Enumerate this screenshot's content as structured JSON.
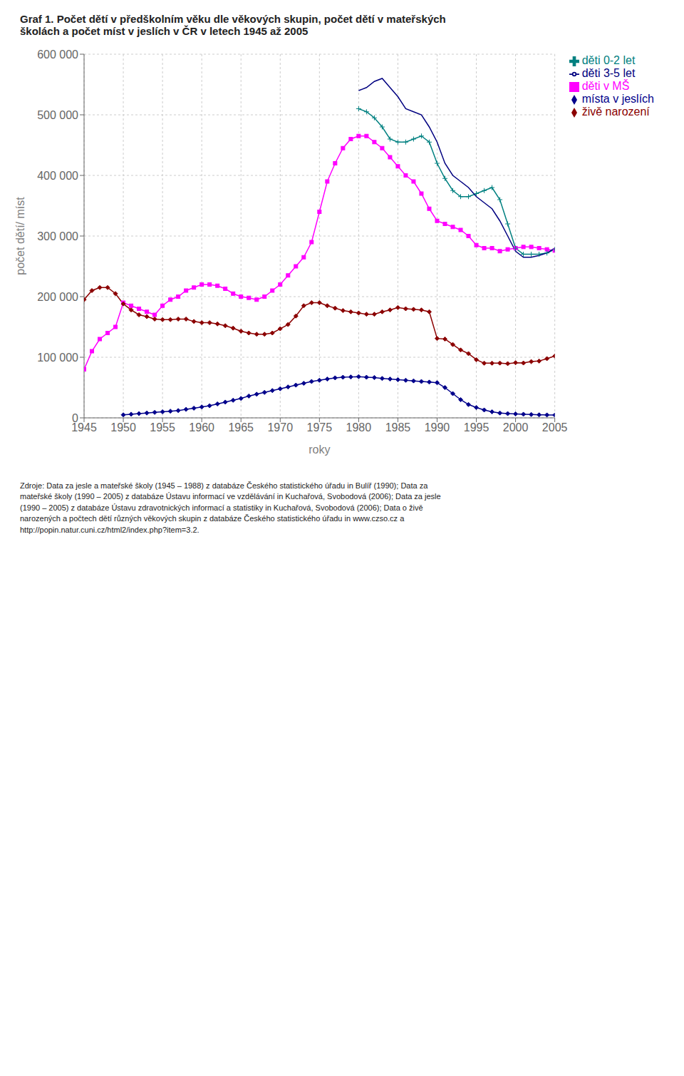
{
  "chart_data": {
    "type": "line",
    "title": "Graf 1. Počet dětí v předškolním věku dle věkových skupin, počet dětí v mateřských\nškolách a počet míst v jeslích v ČR v letech 1945 až 2005",
    "xlabel": "roky",
    "ylabel": "počet dětí/ míst",
    "annotations": [
      "Zdroje:  Data za jesle a mateřské školy (1945 – 1988) z databáze Českého statistického úřadu in Bulíř (1990); Data za\nmateřské školy (1990 – 2005) z databáze Ústavu informací ve vzdělávání in Kuchařová, Svobodová (2006); Data za jesle\n(1990 – 2005) z databáze Ústavu zdravotnických informací a statistiky in Kuchařová, Svobodová (2006); Data o živě\nnarozených a počtech dětí různých věkových skupin z databáze Českého statistického úřadu in www.czso.cz a\nhttp://popin.natur.cuni.cz/html2/index.php?item=3.2."
    ],
    "x": [
      1945,
      1946,
      1947,
      1948,
      1949,
      1950,
      1951,
      1952,
      1953,
      1954,
      1955,
      1956,
      1957,
      1958,
      1959,
      1960,
      1961,
      1962,
      1963,
      1964,
      1965,
      1966,
      1967,
      1968,
      1969,
      1970,
      1971,
      1972,
      1973,
      1974,
      1975,
      1976,
      1977,
      1978,
      1979,
      1980,
      1981,
      1982,
      1983,
      1984,
      1985,
      1986,
      1987,
      1988,
      1989,
      1990,
      1991,
      1992,
      1993,
      1994,
      1995,
      1996,
      1997,
      1998,
      1999,
      2000,
      2001,
      2002,
      2003,
      2004,
      2005
    ],
    "series": [
      {
        "name": "místa v jeslích",
        "color": "#00008B",
        "marker": "diamond",
        "values": [
          null,
          null,
          null,
          null,
          null,
          5000,
          6000,
          7000,
          8000,
          9000,
          10000,
          11000,
          12000,
          14000,
          16000,
          18000,
          20000,
          23000,
          26000,
          29000,
          32000,
          36000,
          39000,
          42000,
          45000,
          48000,
          51000,
          54000,
          57000,
          60000,
          62000,
          64000,
          66000,
          67000,
          67500,
          68000,
          67000,
          66500,
          65000,
          64000,
          63000,
          62000,
          61000,
          60000,
          59000,
          58000,
          50000,
          40000,
          30000,
          22000,
          17000,
          13000,
          10000,
          8000,
          7000,
          6500,
          6000,
          5500,
          5000,
          4800,
          4600
        ]
      },
      {
        "name": "děti v MŠ",
        "color": "#FF00FF",
        "marker": "square",
        "values": [
          80000,
          110000,
          130000,
          140000,
          150000,
          190000,
          185000,
          180000,
          175000,
          170000,
          185000,
          195000,
          200000,
          210000,
          215000,
          220000,
          220000,
          218000,
          213000,
          205000,
          200000,
          198000,
          195000,
          200000,
          210000,
          220000,
          235000,
          250000,
          265000,
          290000,
          340000,
          390000,
          420000,
          445000,
          460000,
          465000,
          465000,
          455000,
          445000,
          430000,
          415000,
          400000,
          390000,
          370000,
          345000,
          325000,
          320000,
          315000,
          310000,
          300000,
          285000,
          280000,
          280000,
          275000,
          278000,
          280000,
          282000,
          282000,
          280000,
          278000,
          276000
        ]
      },
      {
        "name": "živě narození",
        "color": "#8B0000",
        "marker": "diamond",
        "values": [
          195000,
          210000,
          215000,
          215000,
          205000,
          188000,
          178000,
          170000,
          167000,
          163000,
          162000,
          162000,
          163000,
          163000,
          159000,
          157000,
          157000,
          155000,
          152000,
          148000,
          143000,
          140000,
          138000,
          138000,
          140000,
          147000,
          154000,
          168000,
          185000,
          190000,
          190000,
          185000,
          181000,
          177000,
          175000,
          173000,
          171000,
          171000,
          175000,
          178000,
          182000,
          180000,
          179000,
          178000,
          175000,
          131000,
          130000,
          121000,
          112000,
          106000,
          96000,
          90200,
          90200,
          90400,
          89500,
          91000,
          90500,
          92800,
          93700,
          97700,
          102000
        ]
      },
      {
        "name": "děti 0-2 let",
        "color": "#008080",
        "marker": "plus",
        "values": [
          null,
          null,
          null,
          null,
          null,
          null,
          null,
          null,
          null,
          null,
          null,
          null,
          null,
          null,
          null,
          null,
          null,
          null,
          null,
          null,
          null,
          null,
          null,
          null,
          null,
          null,
          null,
          null,
          null,
          null,
          null,
          null,
          null,
          null,
          null,
          510000,
          505000,
          495000,
          480000,
          460000,
          455000,
          455000,
          460000,
          465000,
          455000,
          420000,
          395000,
          375000,
          365000,
          365000,
          370000,
          375000,
          380000,
          360000,
          320000,
          280000,
          270000,
          270000,
          270000,
          272000,
          278000
        ]
      },
      {
        "name": "děti 3-5 let",
        "color": "#000080",
        "marker": "none",
        "values": [
          null,
          null,
          null,
          null,
          null,
          null,
          null,
          null,
          null,
          null,
          null,
          null,
          null,
          null,
          null,
          null,
          null,
          null,
          null,
          null,
          null,
          null,
          null,
          null,
          null,
          null,
          null,
          null,
          null,
          null,
          null,
          null,
          null,
          null,
          null,
          540000,
          545000,
          555000,
          560000,
          545000,
          530000,
          510000,
          505000,
          500000,
          480000,
          455000,
          420000,
          400000,
          390000,
          380000,
          365000,
          355000,
          345000,
          325000,
          300000,
          275000,
          265000,
          265000,
          268000,
          272000,
          280000
        ]
      }
    ],
    "xlim": [
      1945,
      2005
    ],
    "xticks": [
      1945,
      1950,
      1955,
      1960,
      1965,
      1970,
      1975,
      1980,
      1985,
      1990,
      1995,
      2000,
      2005
    ],
    "ylim": [
      0,
      600000
    ],
    "yticks": [
      0,
      {
        "value": 100000,
        "label": "100 000"
      },
      {
        "value": 200000,
        "label": "200 000"
      },
      {
        "value": 300000,
        "label": "300 000"
      },
      {
        "value": 400000,
        "label": "400 000"
      },
      {
        "value": 500000,
        "label": "500 000"
      },
      {
        "value": 600000,
        "label": "600 000"
      }
    ],
    "grid": true,
    "legend": "right"
  }
}
